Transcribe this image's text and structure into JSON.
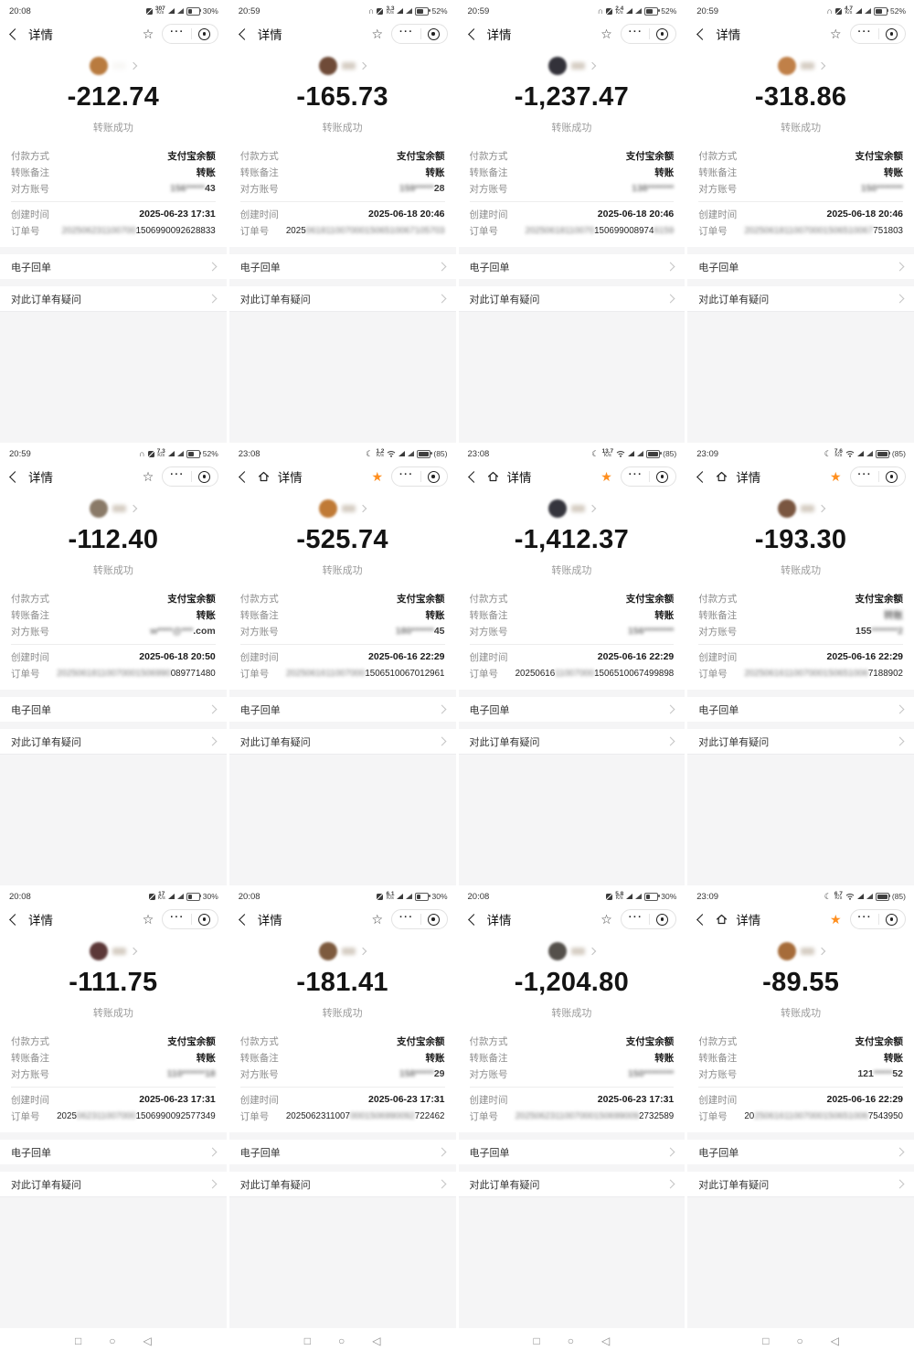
{
  "labels": {
    "title": "详情",
    "status_success": "转账成功",
    "pay_method_label": "付款方式",
    "pay_method_value": "支付宝余额",
    "note_label": "转账备注",
    "note_value": "转账",
    "account_label": "对方账号",
    "created_label": "创建时间",
    "order_label": "订单号",
    "receipt": "电子回单",
    "question": "对此订单有疑问",
    "kps": "K/s"
  },
  "glyphs": {
    "star_filled": "★",
    "star_outline": "☆",
    "moon": "☾",
    "headset": "∩"
  },
  "colors": {
    "accent_orange": "#ff8f1f",
    "panel_gray": "#f5f5f6"
  },
  "android_nav": {
    "recents": "□",
    "home": "○",
    "back": "◁"
  },
  "cards": [
    {
      "time": "20:08",
      "speed": "307",
      "battery_text": "30%",
      "battery_pct": 30,
      "icons": {
        "moon": 0,
        "headset": 0,
        "mute": 1,
        "wifi": 0
      },
      "nav_home": 0,
      "star_filled": 0,
      "avatar": "#b97b3f",
      "amount": "-212.74",
      "created": "2025-06-23 17:31",
      "note_blur": 0,
      "account": [
        {
          "t": "156*****",
          "b": 1
        },
        {
          "t": "43",
          "b": 0
        }
      ],
      "order": [
        {
          "t": "202506231100700",
          "b": 1
        },
        {
          "t": "1506990092628833",
          "b": 0
        }
      ]
    },
    {
      "time": "20:59",
      "speed": "3.3",
      "battery_text": "52%",
      "battery_pct": 52,
      "icons": {
        "moon": 0,
        "headset": 1,
        "mute": 1,
        "wifi": 0
      },
      "nav_home": 0,
      "star_filled": 0,
      "avatar": "#6f4b38",
      "amount": "-165.73",
      "created": "2025-06-18 20:46",
      "note_blur": 0,
      "account": [
        {
          "t": "159*****",
          "b": 1
        },
        {
          "t": "28",
          "b": 0
        }
      ],
      "order": [
        {
          "t": "2025",
          "b": 0
        },
        {
          "t": "0618110070001506510067105703",
          "b": 1
        }
      ]
    },
    {
      "time": "20:59",
      "speed": "2.4",
      "battery_text": "52%",
      "battery_pct": 52,
      "icons": {
        "moon": 0,
        "headset": 1,
        "mute": 1,
        "wifi": 0
      },
      "nav_home": 0,
      "star_filled": 0,
      "avatar": "#33323a",
      "amount": "-1,237.47",
      "created": "2025-06-18 20:46",
      "note_blur": 0,
      "account": [
        {
          "t": "138*******",
          "b": 1
        }
      ],
      "order": [
        {
          "t": "20250618110070",
          "b": 1
        },
        {
          "t": "150699008974",
          "b": 0
        },
        {
          "t": "6159",
          "b": 1
        }
      ]
    },
    {
      "time": "20:59",
      "speed": "4.7",
      "battery_text": "52%",
      "battery_pct": 52,
      "icons": {
        "moon": 0,
        "headset": 1,
        "mute": 1,
        "wifi": 0
      },
      "nav_home": 0,
      "star_filled": 0,
      "avatar": "#c08048",
      "amount": "-318.86",
      "created": "2025-06-18 20:46",
      "note_blur": 0,
      "account": [
        {
          "t": "150*******",
          "b": 1
        }
      ],
      "order": [
        {
          "t": "20250618110070001506510067",
          "b": 1
        },
        {
          "t": "751803",
          "b": 0
        }
      ]
    },
    {
      "time": "20:59",
      "speed": "7.3",
      "battery_text": "52%",
      "battery_pct": 52,
      "icons": {
        "moon": 0,
        "headset": 1,
        "mute": 1,
        "wifi": 0
      },
      "nav_home": 0,
      "star_filled": 0,
      "avatar": "#8a7a68",
      "amount": "-112.40",
      "created": "2025-06-18 20:50",
      "note_blur": 0,
      "account": [
        {
          "t": "w****@***",
          "b": 1
        },
        {
          "t": ".com",
          "b": 0
        }
      ],
      "order": [
        {
          "t": "20250618110070001506990",
          "b": 1
        },
        {
          "t": "089771480",
          "b": 0
        }
      ]
    },
    {
      "time": "23:08",
      "speed": "1.2",
      "battery_text": "(85)",
      "battery_pct": 85,
      "icons": {
        "moon": 1,
        "headset": 0,
        "mute": 0,
        "wifi": 1
      },
      "nav_home": 1,
      "star_filled": 1,
      "avatar": "#c07a36",
      "amount": "-525.74",
      "created": "2025-06-16 22:29",
      "note_blur": 0,
      "account": [
        {
          "t": "180******",
          "b": 1
        },
        {
          "t": "45",
          "b": 0
        }
      ],
      "order": [
        {
          "t": "2025061611007000",
          "b": 1
        },
        {
          "t": "1506510067012961",
          "b": 0
        }
      ]
    },
    {
      "time": "23:08",
      "speed": "13.7",
      "battery_text": "(85)",
      "battery_pct": 85,
      "icons": {
        "moon": 1,
        "headset": 0,
        "mute": 0,
        "wifi": 1
      },
      "nav_home": 1,
      "star_filled": 1,
      "avatar": "#35353d",
      "amount": "-1,412.37",
      "created": "2025-06-16 22:29",
      "note_blur": 0,
      "account": [
        {
          "t": "156********",
          "b": 1
        }
      ],
      "order": [
        {
          "t": "20250616",
          "b": 0
        },
        {
          "t": "11007000",
          "b": 1
        },
        {
          "t": "1506510067499898",
          "b": 0
        }
      ]
    },
    {
      "time": "23:09",
      "speed": "7.6",
      "battery_text": "(85)",
      "battery_pct": 85,
      "icons": {
        "moon": 1,
        "headset": 0,
        "mute": 0,
        "wifi": 1
      },
      "nav_home": 1,
      "star_filled": 1,
      "avatar": "#7a5640",
      "amount": "-193.30",
      "created": "2025-06-16 22:29",
      "note_blur": 1,
      "account": [
        {
          "t": "155",
          "b": 0
        },
        {
          "t": "*******2",
          "b": 1
        }
      ],
      "order": [
        {
          "t": "2025061611007000150651006",
          "b": 1
        },
        {
          "t": "7188902",
          "b": 0
        }
      ]
    },
    {
      "time": "20:08",
      "speed": "17",
      "battery_text": "30%",
      "battery_pct": 30,
      "icons": {
        "moon": 0,
        "headset": 0,
        "mute": 1,
        "wifi": 0
      },
      "nav_home": 0,
      "star_filled": 0,
      "avatar": "#5c3838",
      "amount": "-111.75",
      "created": "2025-06-23 17:31",
      "note_blur": 0,
      "account": [
        {
          "t": "110******18",
          "b": 1
        }
      ],
      "order": [
        {
          "t": "2025",
          "b": 0
        },
        {
          "t": "062311007000",
          "b": 1
        },
        {
          "t": "1506990092577349",
          "b": 0
        }
      ]
    },
    {
      "time": "20:08",
      "speed": "6.1",
      "battery_text": "30%",
      "battery_pct": 30,
      "icons": {
        "moon": 0,
        "headset": 0,
        "mute": 1,
        "wifi": 0
      },
      "nav_home": 0,
      "star_filled": 0,
      "avatar": "#7d5a3e",
      "amount": "-181.41",
      "created": "2025-06-23 17:31",
      "note_blur": 0,
      "account": [
        {
          "t": "158*****",
          "b": 1
        },
        {
          "t": "29",
          "b": 0
        }
      ],
      "order": [
        {
          "t": "2025062311007",
          "b": 0
        },
        {
          "t": "0001506990092",
          "b": 1
        },
        {
          "t": "722462",
          "b": 0
        }
      ]
    },
    {
      "time": "20:08",
      "speed": "5.8",
      "battery_text": "30%",
      "battery_pct": 30,
      "icons": {
        "moon": 0,
        "headset": 0,
        "mute": 1,
        "wifi": 0
      },
      "nav_home": 0,
      "star_filled": 0,
      "avatar": "#54504b",
      "amount": "-1,204.80",
      "created": "2025-06-23 17:31",
      "note_blur": 0,
      "account": [
        {
          "t": "150********",
          "b": 1
        }
      ],
      "order": [
        {
          "t": "2025062311007000150699009",
          "b": 1
        },
        {
          "t": "2732589",
          "b": 0
        }
      ]
    },
    {
      "time": "23:09",
      "speed": "6.7",
      "battery_text": "(85)",
      "battery_pct": 85,
      "icons": {
        "moon": 1,
        "headset": 0,
        "mute": 0,
        "wifi": 1
      },
      "nav_home": 1,
      "star_filled": 1,
      "avatar": "#a66c3a",
      "amount": "-89.55",
      "created": "2025-06-16 22:29",
      "note_blur": 0,
      "account": [
        {
          "t": "121",
          "b": 0
        },
        {
          "t": "*****",
          "b": 1
        },
        {
          "t": "52",
          "b": 0
        }
      ],
      "order": [
        {
          "t": "20",
          "b": 0
        },
        {
          "t": "25061611007000150651006",
          "b": 1
        },
        {
          "t": "7543950",
          "b": 0
        }
      ]
    }
  ]
}
